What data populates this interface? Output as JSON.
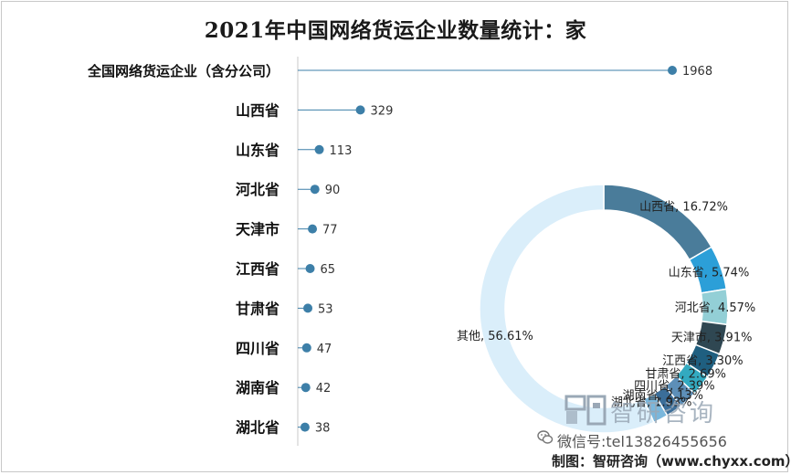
{
  "chart_data": [
    {
      "type": "lollipop",
      "title": "2021年中国网络货运企业数量统计：家",
      "categories": [
        "全国网络货运企业（含分公司）",
        "山西省",
        "山东省",
        "河北省",
        "天津市",
        "江西省",
        "甘肃省",
        "四川省",
        "湖南省",
        "湖北省"
      ],
      "values": [
        1968,
        329,
        113,
        90,
        77,
        65,
        53,
        47,
        42,
        38
      ],
      "xlim": [
        0,
        1968
      ],
      "grid": false,
      "color": "#3d7fa8"
    },
    {
      "type": "pie",
      "donut": true,
      "labels": [
        "山西省",
        "山东省",
        "河北省",
        "天津市",
        "江西省",
        "甘肃省",
        "四川省",
        "湖南省",
        "湖北省",
        "其他"
      ],
      "label_texts": [
        "山西省, 16.72%",
        "山东省, 5.74%",
        "河北省, 4.57%",
        "天津市, 3.91%",
        "江西省, 3.30%",
        "甘肃省, 2.69%",
        "四川省, 2.39%",
        "湖南省, 2.13%",
        "湖北省, 1.93%",
        "其他, 56.61%"
      ],
      "values": [
        16.72,
        5.74,
        4.57,
        3.91,
        3.3,
        2.69,
        2.39,
        2.13,
        1.93,
        56.61
      ],
      "colors": [
        "#4a7c9a",
        "#2c9fd8",
        "#93cfd6",
        "#2f4752",
        "#1f5f80",
        "#33aac0",
        "#5d8fb8",
        "#3b6e99",
        "#7ab7dc",
        "#daeefa"
      ]
    }
  ],
  "source": "制图：智研咨询（www.chyxx.com）",
  "watermark": {
    "brand": "智研咨询",
    "contact": "微信号:tel13826455656",
    "logo_icon": "zhiyan-logo-icon",
    "wechat_icon": "wechat-icon"
  }
}
